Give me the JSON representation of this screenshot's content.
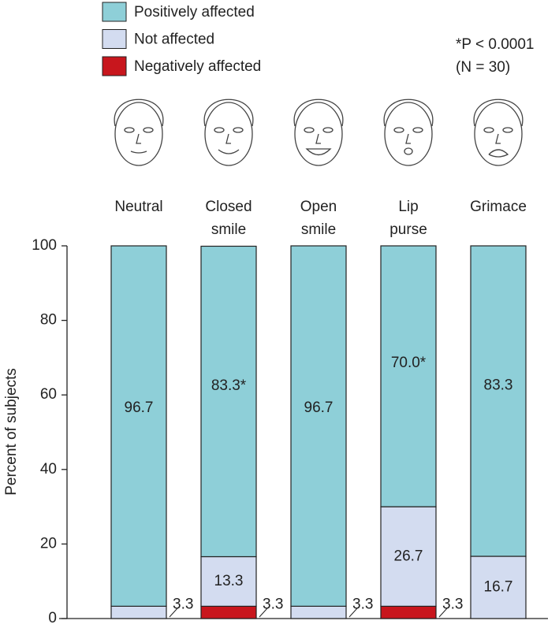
{
  "chart_data": {
    "type": "stacked_bar",
    "categories": [
      "Neutral",
      "Closed smile",
      "Open smile",
      "Lip purse",
      "Grimace"
    ],
    "series": [
      {
        "name": "Negatively affected",
        "color": "#c8161d",
        "values": [
          0,
          3.3,
          0,
          3.3,
          0
        ],
        "value_labels": [
          null,
          "3.3",
          null,
          "3.3",
          null
        ]
      },
      {
        "name": "Not affected",
        "color": "#d3dcf0",
        "values": [
          3.3,
          13.3,
          3.3,
          26.7,
          16.7
        ]
      },
      {
        "name": "Positively affected",
        "color": "#8ecfd8",
        "values": [
          96.7,
          83.3,
          96.7,
          70.0,
          83.3
        ],
        "value_labels": [
          "96.7",
          "83.3*",
          "96.7",
          "70.0*",
          "83.3"
        ]
      }
    ],
    "y_label": "Percent of subjects",
    "ylim": [
      0,
      100
    ],
    "yticks": [
      0,
      20,
      40,
      60,
      80,
      100
    ],
    "annotations": [
      "*P < 0.0001",
      "(N = 30)"
    ]
  }
}
